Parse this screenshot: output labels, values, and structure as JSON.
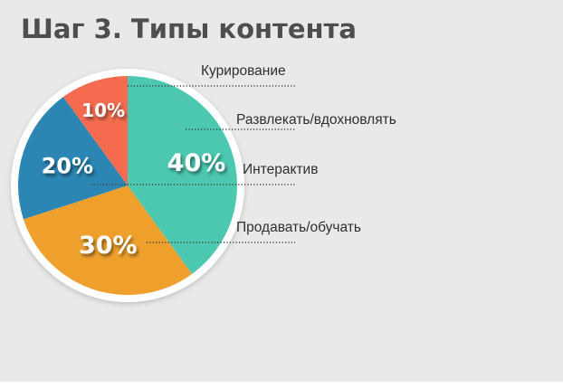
{
  "slide": {
    "title": "Шаг 3. Типы контента",
    "background": "#e9e9ea"
  },
  "chart_data": {
    "type": "pie",
    "title": "Шаг 3. Типы контента",
    "legend_placement": "right",
    "slices": [
      {
        "name": "Развлекать/вдохновлять",
        "value": 40,
        "label": "40%",
        "color": "#4cc8b0"
      },
      {
        "name": "Продавать/обучать",
        "value": 30,
        "label": "30%",
        "color": "#efa02c"
      },
      {
        "name": "Интерактив",
        "value": 20,
        "label": "20%",
        "color": "#2b86b4"
      },
      {
        "name": "Курирование",
        "value": 10,
        "label": "10%",
        "color": "#f46b4f"
      }
    ]
  }
}
